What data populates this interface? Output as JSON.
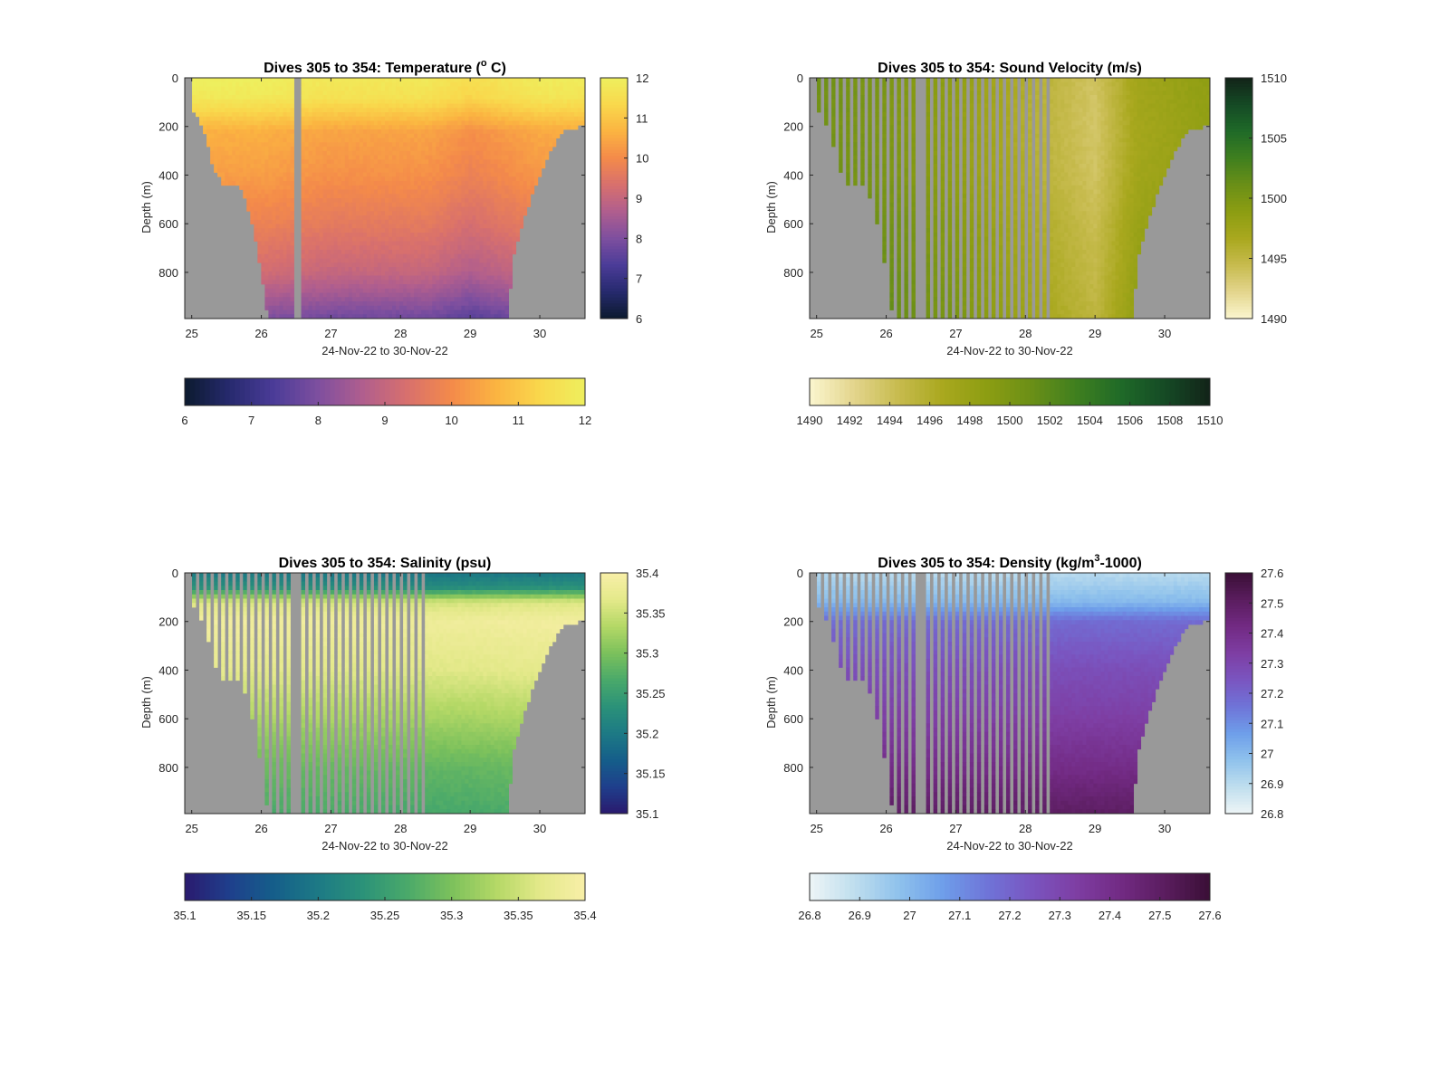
{
  "figure": {
    "background": "#ffffff",
    "mask_color": "#999999"
  },
  "chart_data": [
    {
      "type": "heatmap",
      "title_main": "Dives 305 to 354: Temperature (",
      "title_sup": "o",
      "title_tail": " C)",
      "xlabel": "24-Nov-22 to 30-Nov-22",
      "ylabel": "Depth (m)",
      "xlim": [
        24.9,
        30.65
      ],
      "ylim": [
        0,
        990
      ],
      "y_reversed": true,
      "xticks": [
        25,
        26,
        27,
        28,
        29,
        30
      ],
      "yticks": [
        0,
        200,
        400,
        600,
        800
      ],
      "clim": [
        6,
        12
      ],
      "right_colorbar_ticks": [
        "6",
        "7",
        "8",
        "9",
        "10",
        "11",
        "12"
      ],
      "bottom_colorbar_ticks": [
        "6",
        "7",
        "8",
        "9",
        "10",
        "11",
        "12"
      ],
      "colormap": [
        "#0b1a2e",
        "#262a6e",
        "#4b3c98",
        "#7e4f9f",
        "#b05e8e",
        "#d8706d",
        "#f48a4a",
        "#fbb441",
        "#f9d84c",
        "#eeef5e"
      ],
      "gap_pattern": "none",
      "profile": [
        [
          0,
          11.8
        ],
        [
          80,
          11.6
        ],
        [
          150,
          11.0
        ],
        [
          220,
          10.4
        ],
        [
          400,
          10.1
        ],
        [
          600,
          9.6
        ],
        [
          800,
          9.0
        ],
        [
          900,
          8.4
        ],
        [
          990,
          7.8
        ]
      ],
      "lateral": [
        [
          25.0,
          0.1
        ],
        [
          26.0,
          0.1
        ],
        [
          27.0,
          0.0
        ],
        [
          28.4,
          0.0
        ],
        [
          29.0,
          -0.15
        ],
        [
          30.0,
          0.05
        ],
        [
          30.6,
          0.05
        ]
      ]
    },
    {
      "type": "heatmap",
      "title_main": "Dives 305 to 354: Sound Velocity (m/s)",
      "title_sup": "",
      "title_tail": "",
      "xlabel": "24-Nov-22 to 30-Nov-22",
      "ylabel": "Depth (m)",
      "xlim": [
        24.9,
        30.65
      ],
      "ylim": [
        0,
        990
      ],
      "y_reversed": true,
      "xticks": [
        25,
        26,
        27,
        28,
        29,
        30
      ],
      "yticks": [
        0,
        200,
        400,
        600,
        800
      ],
      "clim": [
        1490,
        1510
      ],
      "right_colorbar_ticks": [
        "1490",
        "1495",
        "1500",
        "1505",
        "1510"
      ],
      "bottom_colorbar_ticks": [
        "1490",
        "1492",
        "1494",
        "1496",
        "1498",
        "1500",
        "1502",
        "1504",
        "1506",
        "1508",
        "1510"
      ],
      "colormap": [
        "#fbf6cf",
        "#e3d58c",
        "#c7bb4e",
        "#a9a81e",
        "#8c9d12",
        "#6a8f17",
        "#3f7f1f",
        "#1f6a28",
        "#154a25",
        "#122318"
      ],
      "gap_pattern": "before_28.4",
      "profile": [
        [
          0,
          1498.6
        ],
        [
          200,
          1498.4
        ],
        [
          400,
          1498.6
        ],
        [
          600,
          1499.2
        ],
        [
          800,
          1499.6
        ],
        [
          990,
          1500.0
        ]
      ],
      "lateral": [
        [
          25.0,
          0.3
        ],
        [
          26.0,
          0.2
        ],
        [
          27.0,
          0.0
        ],
        [
          28.4,
          -0.5
        ],
        [
          29.0,
          -0.7
        ],
        [
          29.6,
          -0.2
        ],
        [
          30.6,
          0.0
        ]
      ]
    },
    {
      "type": "heatmap",
      "title_main": "Dives 305 to 354: Salinity (psu)",
      "title_sup": "",
      "title_tail": "",
      "xlabel": "24-Nov-22 to 30-Nov-22",
      "ylabel": "Depth (m)",
      "xlim": [
        24.9,
        30.65
      ],
      "ylim": [
        0,
        990
      ],
      "y_reversed": true,
      "xticks": [
        25,
        26,
        27,
        28,
        29,
        30
      ],
      "yticks": [
        0,
        200,
        400,
        600,
        800
      ],
      "clim": [
        35.1,
        35.4
      ],
      "right_colorbar_ticks": [
        "35.1",
        "35.15",
        "35.2",
        "35.25",
        "35.3",
        "35.35",
        "35.4"
      ],
      "bottom_colorbar_ticks": [
        "35.1",
        "35.15",
        "35.2",
        "35.25",
        "35.3",
        "35.35",
        "35.4"
      ],
      "colormap": [
        "#2a1a6e",
        "#1f3f8c",
        "#155e8a",
        "#1d7a85",
        "#2b9279",
        "#4aa96a",
        "#7cc15c",
        "#b4d866",
        "#e4e98a",
        "#f8efa8"
      ],
      "gap_pattern": "before_28.4",
      "profile": [
        [
          0,
          35.2
        ],
        [
          60,
          35.23
        ],
        [
          120,
          35.36
        ],
        [
          200,
          35.39
        ],
        [
          400,
          35.37
        ],
        [
          600,
          35.33
        ],
        [
          800,
          35.29
        ],
        [
          990,
          35.27
        ]
      ],
      "lateral": [
        [
          25.0,
          0.0
        ],
        [
          26.0,
          -0.01
        ],
        [
          27.0,
          -0.03
        ],
        [
          28.4,
          -0.06
        ],
        [
          29.0,
          -0.05
        ],
        [
          29.6,
          -0.02
        ],
        [
          30.6,
          0.0
        ]
      ]
    },
    {
      "type": "heatmap",
      "title_main": "Dives 305 to 354: Density (kg/m",
      "title_sup": "3",
      "title_tail": "-1000)",
      "xlabel": "24-Nov-22 to 30-Nov-22",
      "ylabel": "Depth (m)",
      "xlim": [
        24.9,
        30.65
      ],
      "ylim": [
        0,
        990
      ],
      "y_reversed": true,
      "xticks": [
        25,
        26,
        27,
        28,
        29,
        30
      ],
      "yticks": [
        0,
        200,
        400,
        600,
        800
      ],
      "clim": [
        26.8,
        27.6
      ],
      "right_colorbar_ticks": [
        "26.8",
        "26.9",
        "27",
        "27.1",
        "27.2",
        "27.3",
        "27.4",
        "27.5",
        "27.6"
      ],
      "bottom_colorbar_ticks": [
        "26.8",
        "26.9",
        "27",
        "27.1",
        "27.2",
        "27.3",
        "27.4",
        "27.5",
        "27.6"
      ],
      "colormap": [
        "#eef5f6",
        "#bfdeee",
        "#8fc2ec",
        "#6e9eea",
        "#6f74d8",
        "#7a55c0",
        "#7e3ea3",
        "#722a83",
        "#5a1d5e",
        "#3a0f36"
      ],
      "gap_pattern": "before_28.4",
      "profile": [
        [
          0,
          26.9
        ],
        [
          120,
          27.0
        ],
        [
          200,
          27.18
        ],
        [
          400,
          27.27
        ],
        [
          600,
          27.33
        ],
        [
          800,
          27.41
        ],
        [
          990,
          27.5
        ]
      ],
      "lateral": [
        [
          25.0,
          0.0
        ],
        [
          26.0,
          0.0
        ],
        [
          27.0,
          0.0
        ],
        [
          28.4,
          0.0
        ],
        [
          30.6,
          0.0
        ]
      ]
    }
  ],
  "bathymetry_depth_by_day": [
    [
      24.9,
      130
    ],
    [
      25.05,
      150
    ],
    [
      25.2,
      230
    ],
    [
      25.3,
      370
    ],
    [
      25.45,
      440
    ],
    [
      25.7,
      450
    ],
    [
      25.8,
      530
    ],
    [
      25.9,
      640
    ],
    [
      26.0,
      800
    ],
    [
      26.05,
      920
    ],
    [
      26.1,
      990
    ],
    [
      29.55,
      990
    ],
    [
      29.6,
      760
    ],
    [
      29.7,
      650
    ],
    [
      29.8,
      560
    ],
    [
      29.9,
      470
    ],
    [
      30.0,
      410
    ],
    [
      30.1,
      340
    ],
    [
      30.2,
      280
    ],
    [
      30.3,
      230
    ],
    [
      30.4,
      210
    ],
    [
      30.65,
      200
    ]
  ]
}
